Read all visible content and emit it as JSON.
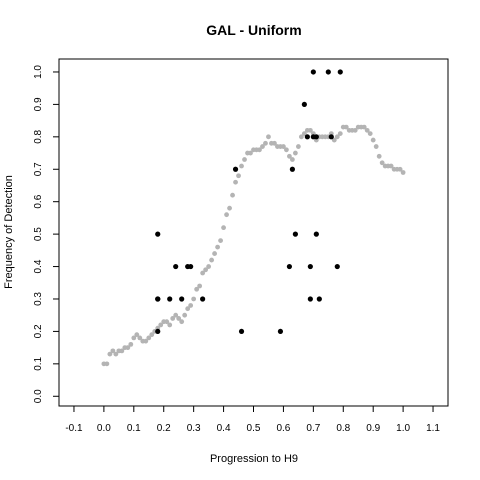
{
  "chart_data": {
    "type": "scatter",
    "title": "GAL - Uniform",
    "xlabel": "Progression to H9",
    "ylabel": "Frequency of Detection",
    "xlim": [
      -0.15,
      1.15
    ],
    "ylim": [
      -0.03,
      1.04
    ],
    "x_ticks": [
      -0.1,
      0.0,
      0.1,
      0.2,
      0.3,
      0.4,
      0.5,
      0.6,
      0.7,
      0.8,
      0.9,
      1.0,
      1.1
    ],
    "x_tick_labels": [
      "-0.1",
      "0.0",
      "0.1",
      "0.2",
      "0.3",
      "0.4",
      "0.5",
      "0.6",
      "0.7",
      "0.8",
      "0.9",
      "1.0",
      "1.1"
    ],
    "y_ticks": [
      0.0,
      0.1,
      0.2,
      0.3,
      0.4,
      0.5,
      0.6,
      0.7,
      0.8,
      0.9,
      1.0
    ],
    "y_tick_labels": [
      "0.0",
      "0.1",
      "0.2",
      "0.3",
      "0.4",
      "0.5",
      "0.6",
      "0.7",
      "0.8",
      "0.9",
      "1.0"
    ],
    "grid": false,
    "legend": "none",
    "series": [
      {
        "color": "#b4b4b4",
        "x": [
          0.0,
          0.01,
          0.02,
          0.03,
          0.04,
          0.05,
          0.06,
          0.07,
          0.08,
          0.09,
          0.1,
          0.11,
          0.12,
          0.13,
          0.14,
          0.15,
          0.16,
          0.17,
          0.18,
          0.19,
          0.2,
          0.21,
          0.22,
          0.23,
          0.24,
          0.25,
          0.26,
          0.27,
          0.28,
          0.29,
          0.3,
          0.31,
          0.32,
          0.33,
          0.34,
          0.35,
          0.36,
          0.37,
          0.38,
          0.39,
          0.4,
          0.41,
          0.42,
          0.43,
          0.44,
          0.45,
          0.46,
          0.47,
          0.48,
          0.49,
          0.5,
          0.51,
          0.52,
          0.53,
          0.54,
          0.55,
          0.56,
          0.57,
          0.58,
          0.59,
          0.6,
          0.61,
          0.62,
          0.63,
          0.64,
          0.65,
          0.66,
          0.67,
          0.68,
          0.69,
          0.7,
          0.71,
          0.72,
          0.73,
          0.74,
          0.75,
          0.76,
          0.77,
          0.78,
          0.79,
          0.8,
          0.81,
          0.82,
          0.83,
          0.84,
          0.85,
          0.86,
          0.87,
          0.88,
          0.89,
          0.9,
          0.91,
          0.92,
          0.93,
          0.94,
          0.95,
          0.96,
          0.97,
          0.98,
          0.99,
          1.0
        ],
        "y": [
          0.1,
          0.1,
          0.13,
          0.14,
          0.13,
          0.14,
          0.14,
          0.15,
          0.15,
          0.16,
          0.18,
          0.19,
          0.18,
          0.17,
          0.17,
          0.18,
          0.19,
          0.2,
          0.21,
          0.22,
          0.23,
          0.23,
          0.22,
          0.24,
          0.25,
          0.24,
          0.23,
          0.25,
          0.27,
          0.28,
          0.3,
          0.33,
          0.34,
          0.38,
          0.39,
          0.4,
          0.42,
          0.44,
          0.46,
          0.48,
          0.52,
          0.56,
          0.58,
          0.62,
          0.66,
          0.68,
          0.71,
          0.73,
          0.75,
          0.75,
          0.76,
          0.76,
          0.76,
          0.77,
          0.78,
          0.8,
          0.78,
          0.78,
          0.77,
          0.77,
          0.77,
          0.76,
          0.74,
          0.73,
          0.75,
          0.77,
          0.8,
          0.81,
          0.82,
          0.82,
          0.81,
          0.79,
          0.8,
          0.8,
          0.8,
          0.8,
          0.81,
          0.79,
          0.8,
          0.81,
          0.83,
          0.83,
          0.82,
          0.82,
          0.82,
          0.83,
          0.83,
          0.83,
          0.82,
          0.81,
          0.79,
          0.77,
          0.74,
          0.72,
          0.71,
          0.71,
          0.71,
          0.7,
          0.7,
          0.7,
          0.69
        ]
      },
      {
        "color": "#000000",
        "x": [
          0.18,
          0.18,
          0.18,
          0.18,
          0.22,
          0.24,
          0.26,
          0.28,
          0.29,
          0.33,
          0.44,
          0.46,
          0.59,
          0.62,
          0.63,
          0.64,
          0.67,
          0.68,
          0.69,
          0.69,
          0.7,
          0.7,
          0.71,
          0.71,
          0.72,
          0.75,
          0.76,
          0.78,
          0.79
        ],
        "y": [
          0.5,
          0.3,
          0.3,
          0.2,
          0.3,
          0.4,
          0.3,
          0.4,
          0.4,
          0.3,
          0.7,
          0.2,
          0.2,
          0.4,
          0.7,
          0.5,
          0.9,
          0.8,
          0.4,
          0.3,
          1.0,
          0.8,
          0.5,
          0.8,
          0.3,
          1.0,
          0.8,
          0.4,
          1.0
        ]
      }
    ]
  }
}
